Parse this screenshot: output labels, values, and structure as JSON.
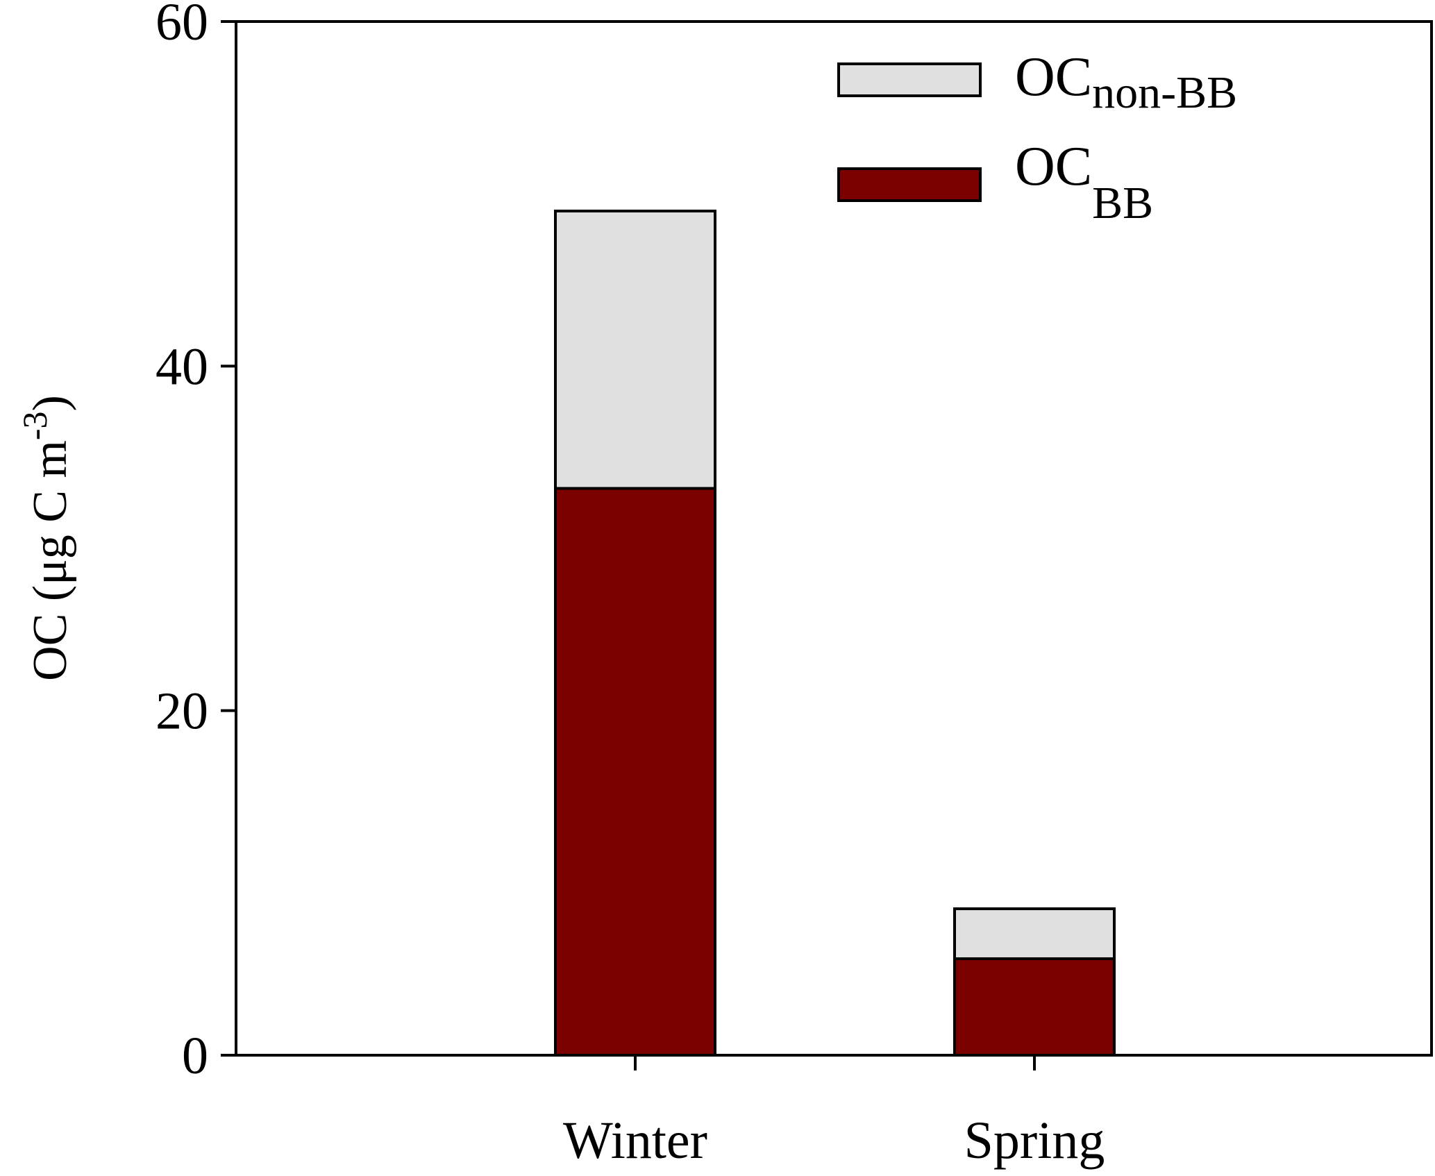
{
  "chart_data": {
    "type": "bar",
    "stacked": true,
    "categories": [
      "Winter",
      "Spring"
    ],
    "series": [
      {
        "name_main": "OC",
        "name_sub": "BB",
        "color": "#7b0000",
        "values": [
          32.9,
          5.6
        ]
      },
      {
        "name_main": "OC",
        "name_sub": "non-BB",
        "color": "#e0e0e0",
        "values": [
          16.1,
          2.9
        ]
      }
    ],
    "ylim": [
      0,
      60
    ],
    "yticks": [
      "0",
      "20",
      "40",
      "60"
    ],
    "ylabel": {
      "prefix": "OC (μg C m",
      "superscript": "-3",
      "suffix": ")"
    },
    "legend_position": "top-right",
    "grid": false
  }
}
